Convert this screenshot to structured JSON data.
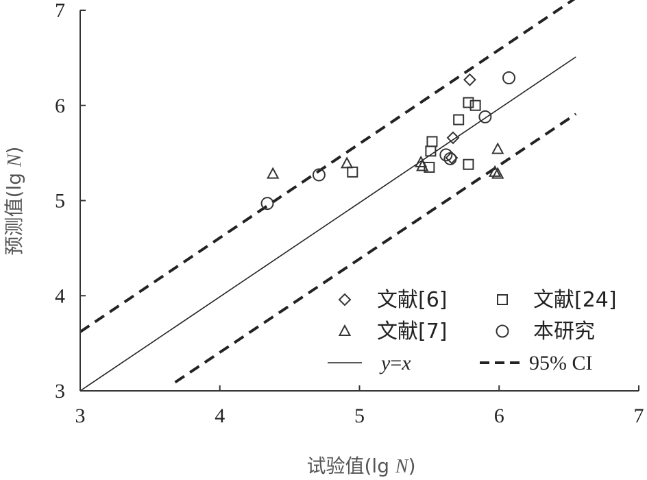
{
  "chart_data": {
    "type": "scatter",
    "xlabel_main": "试验值(lg ",
    "xlabel_italic": "N",
    "xlabel_end": ")",
    "ylabel_main": "预测值(lg ",
    "ylabel_italic": "N",
    "ylabel_end": ")",
    "xlim": [
      3,
      7
    ],
    "ylim": [
      3,
      7
    ],
    "xticks": [
      "3",
      "4",
      "5",
      "6",
      "7"
    ],
    "yticks": [
      "3",
      "4",
      "5",
      "6",
      "7"
    ],
    "grid": false,
    "legend_position": "bottom-right",
    "series": [
      {
        "name": "文献[6]",
        "marker": "diamond",
        "points": [
          [
            5.67,
            5.66
          ],
          [
            5.66,
            5.45
          ],
          [
            5.79,
            6.27
          ]
        ]
      },
      {
        "name": "文献[24]",
        "marker": "square",
        "points": [
          [
            4.95,
            5.3
          ],
          [
            5.5,
            5.35
          ],
          [
            5.51,
            5.52
          ],
          [
            5.52,
            5.62
          ],
          [
            5.71,
            5.85
          ],
          [
            5.78,
            6.03
          ],
          [
            5.83,
            6.0
          ],
          [
            5.78,
            5.38
          ]
        ]
      },
      {
        "name": "文献[7]",
        "marker": "triangle",
        "points": [
          [
            4.38,
            5.28
          ],
          [
            4.91,
            5.39
          ],
          [
            5.44,
            5.4
          ],
          [
            5.45,
            5.36
          ],
          [
            5.97,
            5.3
          ],
          [
            5.99,
            5.28
          ],
          [
            5.99,
            5.54
          ]
        ]
      },
      {
        "name": "本研究",
        "marker": "circle",
        "points": [
          [
            4.34,
            4.97
          ],
          [
            4.71,
            5.27
          ],
          [
            5.62,
            5.48
          ],
          [
            5.65,
            5.44
          ],
          [
            5.9,
            5.88
          ],
          [
            6.07,
            6.29
          ]
        ]
      }
    ],
    "lines": [
      {
        "name_prefix": "y",
        "name_mid": "=",
        "name_suffix": "x",
        "style": "solid",
        "points": [
          [
            3.0,
            3.0
          ],
          [
            6.55,
            6.51
          ]
        ]
      },
      {
        "name": "95% CI",
        "style": "dashed",
        "segments": [
          [
            [
              3.0,
              3.62
            ],
            [
              6.55,
              7.13
            ]
          ],
          [
            [
              3.68,
              3.09
            ],
            [
              6.55,
              5.91
            ]
          ]
        ]
      }
    ]
  }
}
